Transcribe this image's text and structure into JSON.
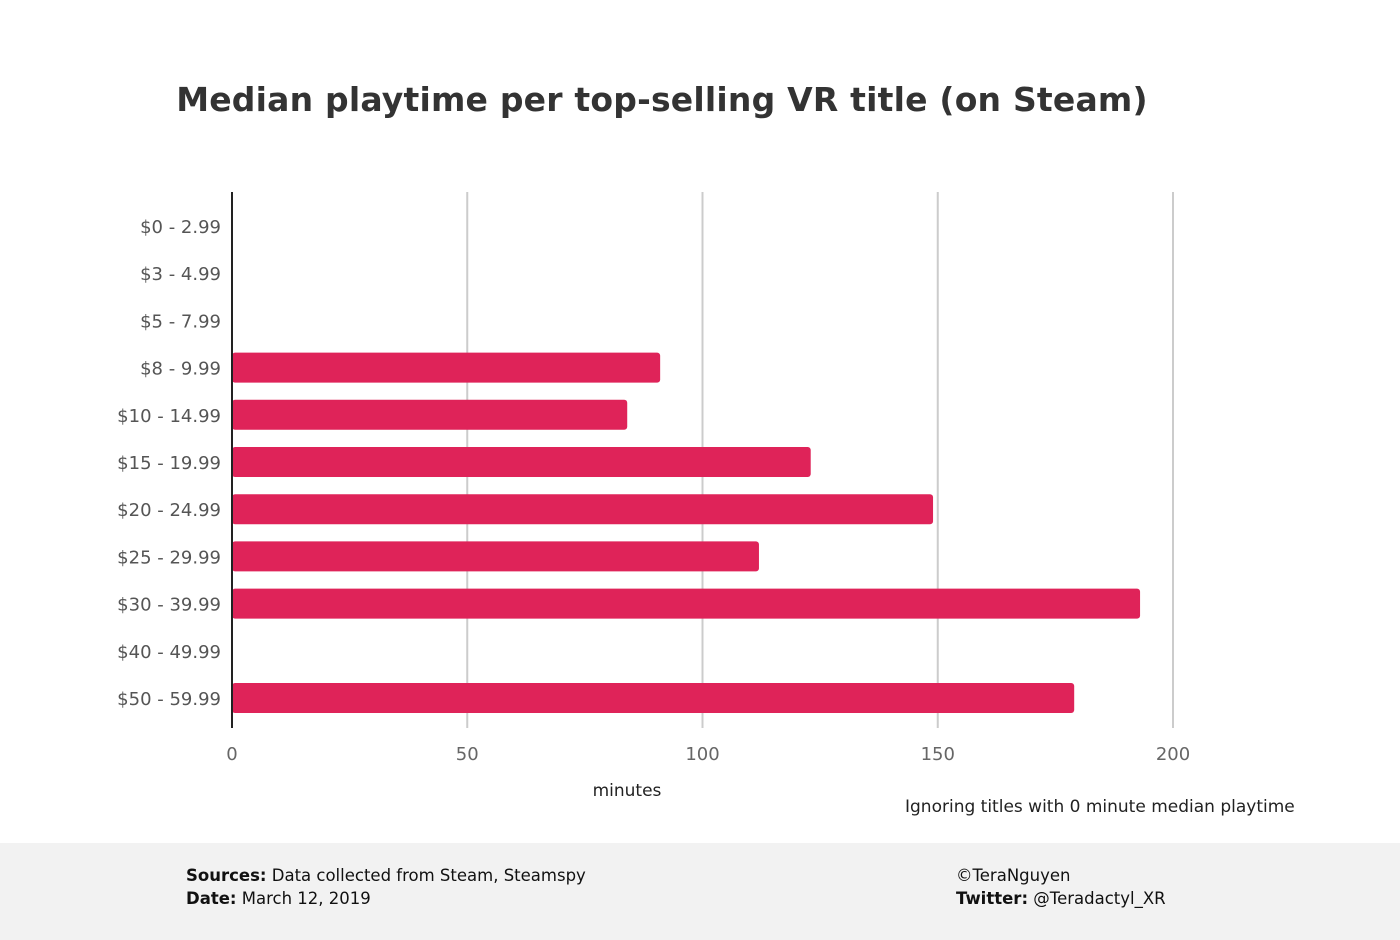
{
  "chart_data": {
    "type": "bar",
    "orientation": "horizontal",
    "title": "Median playtime per top-selling VR title (on Steam)",
    "xlabel": "minutes",
    "ylabel": "",
    "categories": [
      "$0 - 2.99",
      "$3 - 4.99",
      "$5 - 7.99",
      "$8 - 9.99",
      "$10 - 14.99",
      "$15 - 19.99",
      "$20 - 24.99",
      "$25 - 29.99",
      "$30 - 39.99",
      "$40 - 49.99",
      "$50 - 59.99"
    ],
    "values": [
      0,
      0,
      0,
      91,
      84,
      123,
      149,
      112,
      193,
      0,
      179
    ],
    "xlim": [
      0,
      200
    ],
    "x_ticks": [
      0,
      50,
      100,
      150,
      200
    ],
    "grid": true,
    "bar_color": "#df2359",
    "annotation": "Ignoring titles with 0 minute median playtime"
  },
  "footer": {
    "sources_label": "Sources:",
    "sources_text": "Data collected from Steam, Steamspy",
    "date_label": "Date:",
    "date_text": "March 12, 2019",
    "credit": "©TeraNguyen",
    "twitter_label": "Twitter:",
    "twitter_text": "@Teradactyl_XR"
  }
}
